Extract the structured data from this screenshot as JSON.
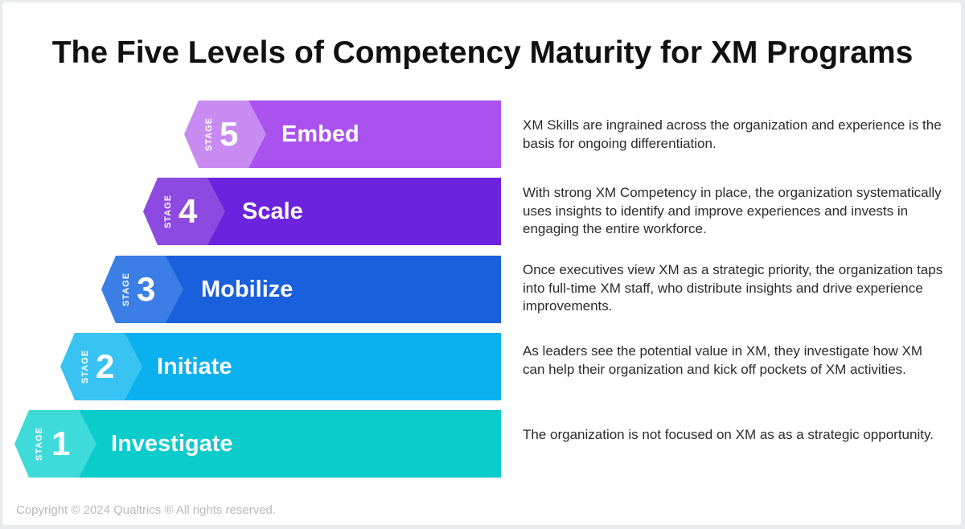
{
  "title": "The Five Levels of Competency Maturity for XM Programs",
  "stage_word": "STAGE",
  "stages": [
    {
      "number": "5",
      "label": "Embed",
      "description": "XM Skills are ingrained across the organization and experience is the basis for ongoing differentiation.",
      "colors": {
        "tip": "#c88bf2",
        "bar": "#a952ee"
      }
    },
    {
      "number": "4",
      "label": "Scale",
      "description": "With strong XM Competency in place, the organization systematically uses insights to identify and improve experiences and invests in engaging the entire workforce.",
      "colors": {
        "tip": "#8d4ae0",
        "bar": "#6b23dd"
      }
    },
    {
      "number": "3",
      "label": "Mobilize",
      "description": "Once executives view XM as a strategic priority, the organization taps into full-time XM staff, who distribute insights and drive experience improvements.",
      "colors": {
        "tip": "#3a7ee6",
        "bar": "#1a5fdc"
      }
    },
    {
      "number": "2",
      "label": "Initiate",
      "description": "As leaders see the potential value in XM, they investigate how XM can help their organization and kick off pockets of XM activities.",
      "colors": {
        "tip": "#39c3f2",
        "bar": "#0bb1ef"
      }
    },
    {
      "number": "1",
      "label": "Investigate",
      "description": "The organization is not focused on XM as as a strategic opportunity.",
      "colors": {
        "tip": "#3fdada",
        "bar": "#0ccbcb"
      }
    }
  ],
  "copyright": "Copyright © 2024 Qualtrics ® All rights reserved."
}
